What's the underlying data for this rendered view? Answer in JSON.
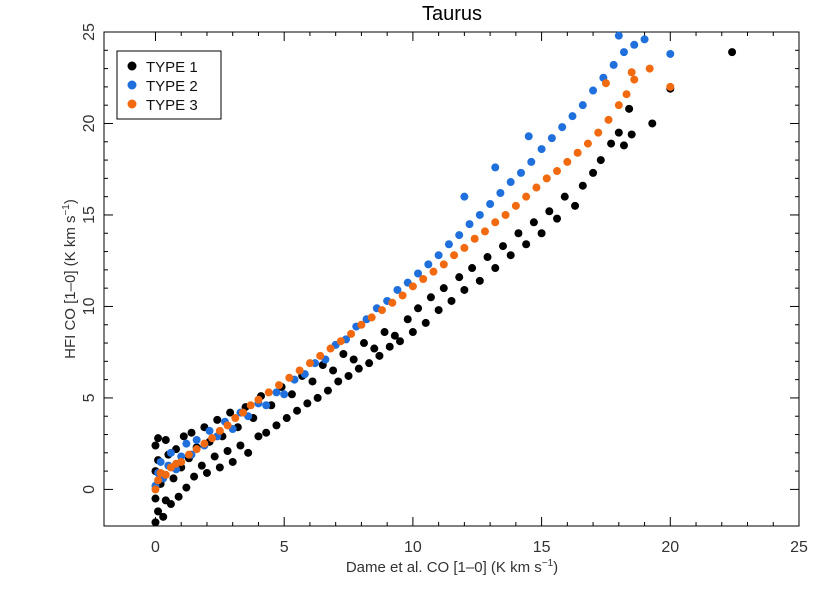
{
  "chart_data": {
    "type": "scatter",
    "title": "Taurus",
    "xlabel": "Dame et al. CO [1–0] (K km s",
    "xlabel_sup": "−1",
    "xlabel_end": ")",
    "ylabel": "HFI CO [1–0] (K km s",
    "ylabel_sup": "−1",
    "ylabel_end": ")",
    "xlim": [
      -2,
      25
    ],
    "ylim": [
      -2,
      25
    ],
    "xticks": [
      0,
      5,
      10,
      15,
      20,
      25
    ],
    "yticks": [
      0,
      5,
      10,
      15,
      20,
      25
    ],
    "xtick_labels": [
      "0",
      "5",
      "10",
      "15",
      "20",
      "25"
    ],
    "ytick_labels": [
      "0",
      "5",
      "10",
      "15",
      "20",
      "25"
    ],
    "grid": false,
    "legend_position": "top-left",
    "series": [
      {
        "name": "TYPE 1",
        "color": "#000000",
        "points": [
          [
            0.0,
            -1.8
          ],
          [
            0.1,
            -1.2
          ],
          [
            0.0,
            -0.5
          ],
          [
            0.2,
            0.3
          ],
          [
            0.0,
            1.0
          ],
          [
            0.1,
            1.6
          ],
          [
            0.0,
            2.4
          ],
          [
            0.1,
            2.8
          ],
          [
            0.3,
            -1.5
          ],
          [
            0.4,
            -0.6
          ],
          [
            0.3,
            0.8
          ],
          [
            0.5,
            1.9
          ],
          [
            0.4,
            2.7
          ],
          [
            0.6,
            -0.8
          ],
          [
            0.7,
            0.6
          ],
          [
            0.8,
            2.2
          ],
          [
            0.9,
            -0.4
          ],
          [
            1.0,
            1.2
          ],
          [
            1.1,
            2.9
          ],
          [
            1.2,
            0.1
          ],
          [
            1.3,
            1.7
          ],
          [
            1.4,
            3.1
          ],
          [
            1.5,
            0.7
          ],
          [
            1.6,
            2.3
          ],
          [
            1.8,
            1.3
          ],
          [
            1.9,
            3.4
          ],
          [
            2.0,
            0.9
          ],
          [
            2.1,
            2.6
          ],
          [
            2.3,
            1.8
          ],
          [
            2.4,
            3.8
          ],
          [
            2.5,
            1.2
          ],
          [
            2.6,
            2.9
          ],
          [
            2.8,
            2.1
          ],
          [
            2.9,
            4.2
          ],
          [
            3.0,
            1.5
          ],
          [
            3.2,
            3.4
          ],
          [
            3.3,
            2.4
          ],
          [
            3.5,
            4.5
          ],
          [
            3.6,
            2.0
          ],
          [
            3.8,
            3.9
          ],
          [
            4.0,
            2.9
          ],
          [
            4.1,
            5.1
          ],
          [
            4.3,
            3.1
          ],
          [
            4.5,
            4.6
          ],
          [
            4.7,
            3.5
          ],
          [
            4.9,
            5.6
          ],
          [
            5.1,
            3.9
          ],
          [
            5.3,
            5.2
          ],
          [
            5.5,
            4.3
          ],
          [
            5.7,
            6.2
          ],
          [
            5.9,
            4.7
          ],
          [
            6.1,
            5.9
          ],
          [
            6.3,
            5.0
          ],
          [
            6.5,
            6.8
          ],
          [
            6.7,
            5.4
          ],
          [
            6.9,
            6.5
          ],
          [
            7.1,
            5.9
          ],
          [
            7.3,
            7.4
          ],
          [
            7.5,
            6.2
          ],
          [
            7.7,
            7.1
          ],
          [
            7.9,
            6.6
          ],
          [
            8.1,
            8.0
          ],
          [
            8.3,
            6.9
          ],
          [
            8.5,
            7.7
          ],
          [
            8.7,
            7.3
          ],
          [
            8.9,
            8.6
          ],
          [
            9.1,
            7.8
          ],
          [
            9.3,
            8.4
          ],
          [
            9.5,
            8.1
          ],
          [
            9.8,
            9.3
          ],
          [
            10.0,
            8.6
          ],
          [
            10.2,
            9.9
          ],
          [
            10.5,
            9.1
          ],
          [
            10.7,
            10.5
          ],
          [
            11.0,
            9.8
          ],
          [
            11.2,
            11.0
          ],
          [
            11.5,
            10.3
          ],
          [
            11.8,
            11.6
          ],
          [
            12.0,
            10.9
          ],
          [
            12.3,
            12.1
          ],
          [
            12.6,
            11.4
          ],
          [
            12.9,
            12.7
          ],
          [
            13.2,
            12.1
          ],
          [
            13.5,
            13.3
          ],
          [
            13.8,
            12.8
          ],
          [
            14.1,
            14.0
          ],
          [
            14.4,
            13.4
          ],
          [
            14.7,
            14.6
          ],
          [
            15.0,
            14.0
          ],
          [
            15.3,
            15.2
          ],
          [
            15.6,
            14.8
          ],
          [
            15.9,
            16.0
          ],
          [
            16.3,
            15.5
          ],
          [
            16.6,
            16.6
          ],
          [
            17.0,
            17.3
          ],
          [
            17.3,
            18.0
          ],
          [
            17.7,
            18.9
          ],
          [
            18.0,
            19.5
          ],
          [
            18.2,
            18.8
          ],
          [
            18.5,
            19.4
          ],
          [
            18.4,
            20.8
          ],
          [
            19.3,
            20.0
          ],
          [
            20.0,
            21.9
          ],
          [
            22.4,
            23.9
          ]
        ]
      },
      {
        "name": "TYPE 2",
        "color": "#1f6fdc",
        "points": [
          [
            0.0,
            0.2
          ],
          [
            0.1,
            0.9
          ],
          [
            0.2,
            1.5
          ],
          [
            0.3,
            0.6
          ],
          [
            0.5,
            1.3
          ],
          [
            0.6,
            2.0
          ],
          [
            0.8,
            1.1
          ],
          [
            1.0,
            1.8
          ],
          [
            1.2,
            2.5
          ],
          [
            1.4,
            1.9
          ],
          [
            1.6,
            2.7
          ],
          [
            1.9,
            2.4
          ],
          [
            2.1,
            3.2
          ],
          [
            2.4,
            2.9
          ],
          [
            2.7,
            3.7
          ],
          [
            3.0,
            3.3
          ],
          [
            3.3,
            4.2
          ],
          [
            3.6,
            4.0
          ],
          [
            4.0,
            4.7
          ],
          [
            4.3,
            4.6
          ],
          [
            4.7,
            5.3
          ],
          [
            5.0,
            5.2
          ],
          [
            5.4,
            6.0
          ],
          [
            5.8,
            6.3
          ],
          [
            6.2,
            6.9
          ],
          [
            6.6,
            7.1
          ],
          [
            7.0,
            7.9
          ],
          [
            7.4,
            8.2
          ],
          [
            7.8,
            8.9
          ],
          [
            8.2,
            9.3
          ],
          [
            8.6,
            9.9
          ],
          [
            9.0,
            10.3
          ],
          [
            9.4,
            10.9
          ],
          [
            9.8,
            11.3
          ],
          [
            10.2,
            11.8
          ],
          [
            10.6,
            12.3
          ],
          [
            11.0,
            12.8
          ],
          [
            11.4,
            13.4
          ],
          [
            11.8,
            13.9
          ],
          [
            12.2,
            14.5
          ],
          [
            12.6,
            15.0
          ],
          [
            13.0,
            15.6
          ],
          [
            13.4,
            16.2
          ],
          [
            13.8,
            16.8
          ],
          [
            14.2,
            17.3
          ],
          [
            14.6,
            17.9
          ],
          [
            15.0,
            18.6
          ],
          [
            15.4,
            19.2
          ],
          [
            15.8,
            19.8
          ],
          [
            16.2,
            20.4
          ],
          [
            16.6,
            21.0
          ],
          [
            17.0,
            21.8
          ],
          [
            17.4,
            22.5
          ],
          [
            17.8,
            23.2
          ],
          [
            18.0,
            24.8
          ],
          [
            18.2,
            23.9
          ],
          [
            18.6,
            24.3
          ],
          [
            19.0,
            24.6
          ],
          [
            20.0,
            23.8
          ],
          [
            14.5,
            19.3
          ],
          [
            13.2,
            17.6
          ],
          [
            12.0,
            16.0
          ]
        ]
      },
      {
        "name": "TYPE 3",
        "color": "#f26a10",
        "points": [
          [
            0.0,
            0.0
          ],
          [
            0.1,
            0.5
          ],
          [
            0.2,
            0.9
          ],
          [
            0.4,
            0.8
          ],
          [
            0.6,
            1.2
          ],
          [
            0.8,
            1.4
          ],
          [
            1.0,
            1.5
          ],
          [
            1.3,
            1.9
          ],
          [
            1.6,
            2.2
          ],
          [
            1.9,
            2.5
          ],
          [
            2.2,
            2.8
          ],
          [
            2.5,
            3.2
          ],
          [
            2.8,
            3.5
          ],
          [
            3.1,
            3.9
          ],
          [
            3.4,
            4.2
          ],
          [
            3.7,
            4.6
          ],
          [
            4.0,
            4.9
          ],
          [
            4.4,
            5.3
          ],
          [
            4.8,
            5.7
          ],
          [
            5.2,
            6.1
          ],
          [
            5.6,
            6.5
          ],
          [
            6.0,
            6.9
          ],
          [
            6.4,
            7.3
          ],
          [
            6.8,
            7.7
          ],
          [
            7.2,
            8.1
          ],
          [
            7.6,
            8.5
          ],
          [
            8.0,
            9.0
          ],
          [
            8.4,
            9.4
          ],
          [
            8.8,
            9.8
          ],
          [
            9.2,
            10.2
          ],
          [
            9.6,
            10.6
          ],
          [
            10.0,
            11.1
          ],
          [
            10.4,
            11.5
          ],
          [
            10.8,
            11.9
          ],
          [
            11.2,
            12.3
          ],
          [
            11.6,
            12.8
          ],
          [
            12.0,
            13.2
          ],
          [
            12.4,
            13.7
          ],
          [
            12.8,
            14.1
          ],
          [
            13.2,
            14.6
          ],
          [
            13.6,
            15.0
          ],
          [
            14.0,
            15.5
          ],
          [
            14.4,
            16.0
          ],
          [
            14.8,
            16.5
          ],
          [
            15.2,
            17.0
          ],
          [
            15.6,
            17.4
          ],
          [
            16.0,
            17.9
          ],
          [
            16.4,
            18.4
          ],
          [
            16.8,
            18.9
          ],
          [
            17.2,
            19.5
          ],
          [
            17.6,
            20.2
          ],
          [
            18.0,
            21.0
          ],
          [
            18.3,
            21.6
          ],
          [
            18.6,
            22.4
          ],
          [
            19.2,
            23.0
          ],
          [
            20.0,
            22.0
          ],
          [
            17.5,
            22.2
          ],
          [
            18.5,
            22.8
          ]
        ]
      }
    ]
  }
}
